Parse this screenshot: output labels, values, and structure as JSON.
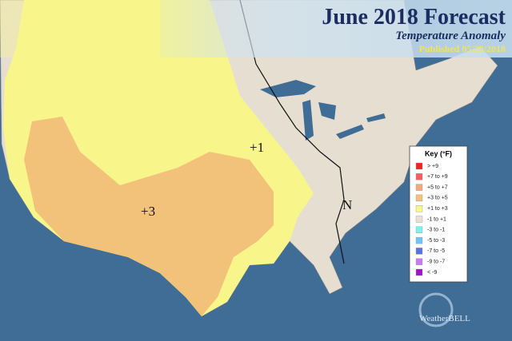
{
  "header": {
    "title": "June 2018 Forecast",
    "subtitle": "Temperature Anomaly",
    "published": "Published 05/29/2018"
  },
  "map_labels": [
    "+1",
    "+3",
    "N"
  ],
  "key": {
    "title": "Key (°F)",
    "entries": [
      {
        "label": "> +9",
        "color": "#ee2222"
      },
      {
        "label": "+7 to +9",
        "color": "#f2605a"
      },
      {
        "label": "+5 to +7",
        "color": "#f4a77c"
      },
      {
        "label": "+3 to +5",
        "color": "#f2c27a"
      },
      {
        "label": "+1 to +3",
        "color": "#f8f58a"
      },
      {
        "label": "-1 to +1",
        "color": "#e8e1d3"
      },
      {
        "label": "-3 to -1",
        "color": "#7ef3ec"
      },
      {
        "label": "-5 to -3",
        "color": "#6fc4f4"
      },
      {
        "label": "-7 to -5",
        "color": "#5a6fe8"
      },
      {
        "label": "-9 to -7",
        "color": "#c77cf0"
      },
      {
        "label": "< -9",
        "color": "#a010c8"
      }
    ]
  },
  "logo": "WeatherBELL"
}
